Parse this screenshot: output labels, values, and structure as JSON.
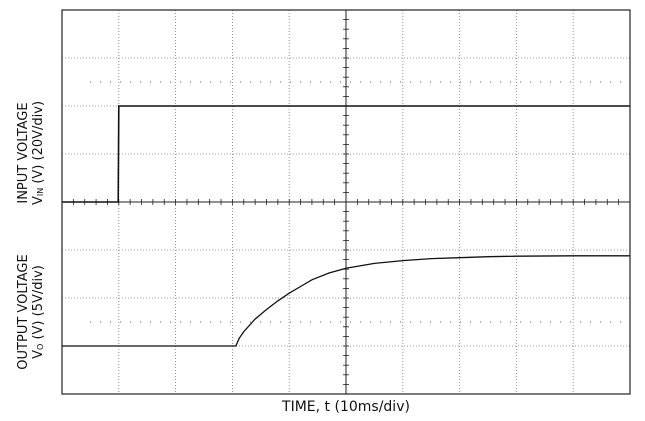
{
  "chart_data": [
    {
      "type": "line",
      "title": "",
      "ylabel_line1": "INPUT VOLTAGE",
      "ylabel_line2": {
        "pre": "V",
        "sub": "IN",
        "post": " (V) (20V/div)"
      },
      "xlabel": "",
      "x_units": "ms",
      "y_units": "V",
      "grid": true,
      "series": [
        {
          "x": [
            0,
            9.9,
            10.0,
            10.3,
            100
          ],
          "y": [
            0,
            0,
            40,
            40,
            40
          ]
        }
      ]
    },
    {
      "type": "line",
      "title": "",
      "ylabel_line1": "OUTPUT VOLTAGE",
      "ylabel_line2": {
        "pre": "V",
        "sub": "O",
        "post": " (V) (5V/div)"
      },
      "xlabel": "TIME, t (10ms/div)",
      "x_units": "ms",
      "y_units": "V",
      "grid": true,
      "series": [
        {
          "x": [
            0,
            30.6,
            31.2,
            32,
            34,
            36,
            38,
            40,
            42,
            44,
            47,
            50,
            55,
            60,
            65,
            70,
            75,
            80,
            90,
            100
          ],
          "y": [
            0,
            0,
            0.8,
            1.5,
            2.8,
            3.8,
            4.7,
            5.5,
            6.2,
            6.9,
            7.6,
            8.1,
            8.6,
            8.9,
            9.1,
            9.2,
            9.3,
            9.35,
            9.4,
            9.4
          ]
        }
      ]
    }
  ]
}
